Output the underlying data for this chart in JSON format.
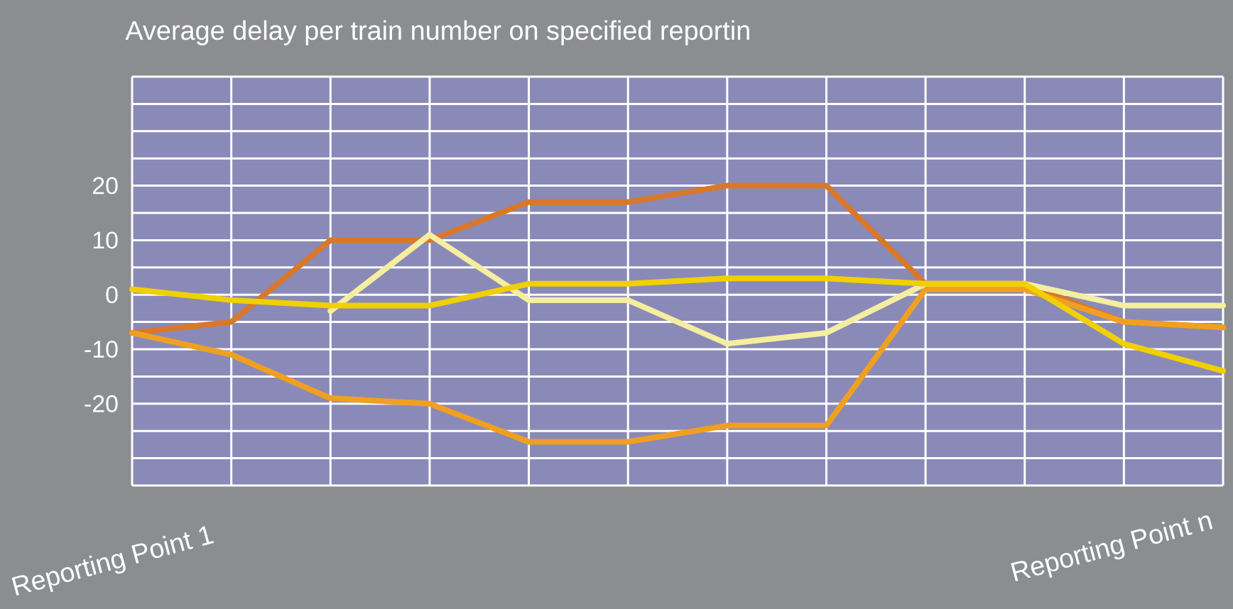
{
  "chart_data": {
    "type": "line",
    "title": "Average delay per train number on specified reportin",
    "categories": [
      null,
      null,
      null,
      null,
      null,
      null,
      null,
      null,
      null,
      null,
      null,
      null
    ],
    "annotations": [
      "Reporting Point 1",
      "Reporting Point n"
    ],
    "series": [
      {
        "color": "#d9782a",
        "values": [
          -7,
          -5,
          10,
          10,
          17,
          17,
          20,
          20,
          2,
          2,
          -5,
          -6
        ]
      },
      {
        "color": "#f0a020",
        "values": [
          -7,
          -11,
          -19,
          -20,
          -27,
          -27,
          -24,
          -24,
          1,
          1,
          -5,
          -6
        ]
      },
      {
        "color": "#f5eea0",
        "values": [
          null,
          null,
          -3,
          11,
          -1,
          -1,
          -9,
          -7,
          2,
          2,
          -2,
          -2
        ]
      },
      {
        "color": "#f0d000",
        "values": [
          1,
          -1,
          -2,
          -2,
          2,
          2,
          3,
          3,
          2,
          2,
          -9,
          -14
        ]
      }
    ],
    "ylim": [
      -35,
      40
    ],
    "yticks": [
      {
        "value": -35,
        "label": null
      },
      {
        "value": -30,
        "label": null
      },
      {
        "value": -25,
        "label": null
      },
      -20,
      {
        "value": -15,
        "label": null
      },
      -10,
      {
        "value": -5,
        "label": null
      },
      0,
      {
        "value": 5,
        "label": null
      },
      10,
      {
        "value": 15,
        "label": null
      },
      20,
      {
        "value": 25,
        "label": null
      },
      {
        "value": 30,
        "label": null
      },
      {
        "value": 35,
        "label": null
      },
      {
        "value": 40,
        "label": null
      }
    ],
    "grid": true,
    "marker": "none",
    "line_style": "solid"
  }
}
